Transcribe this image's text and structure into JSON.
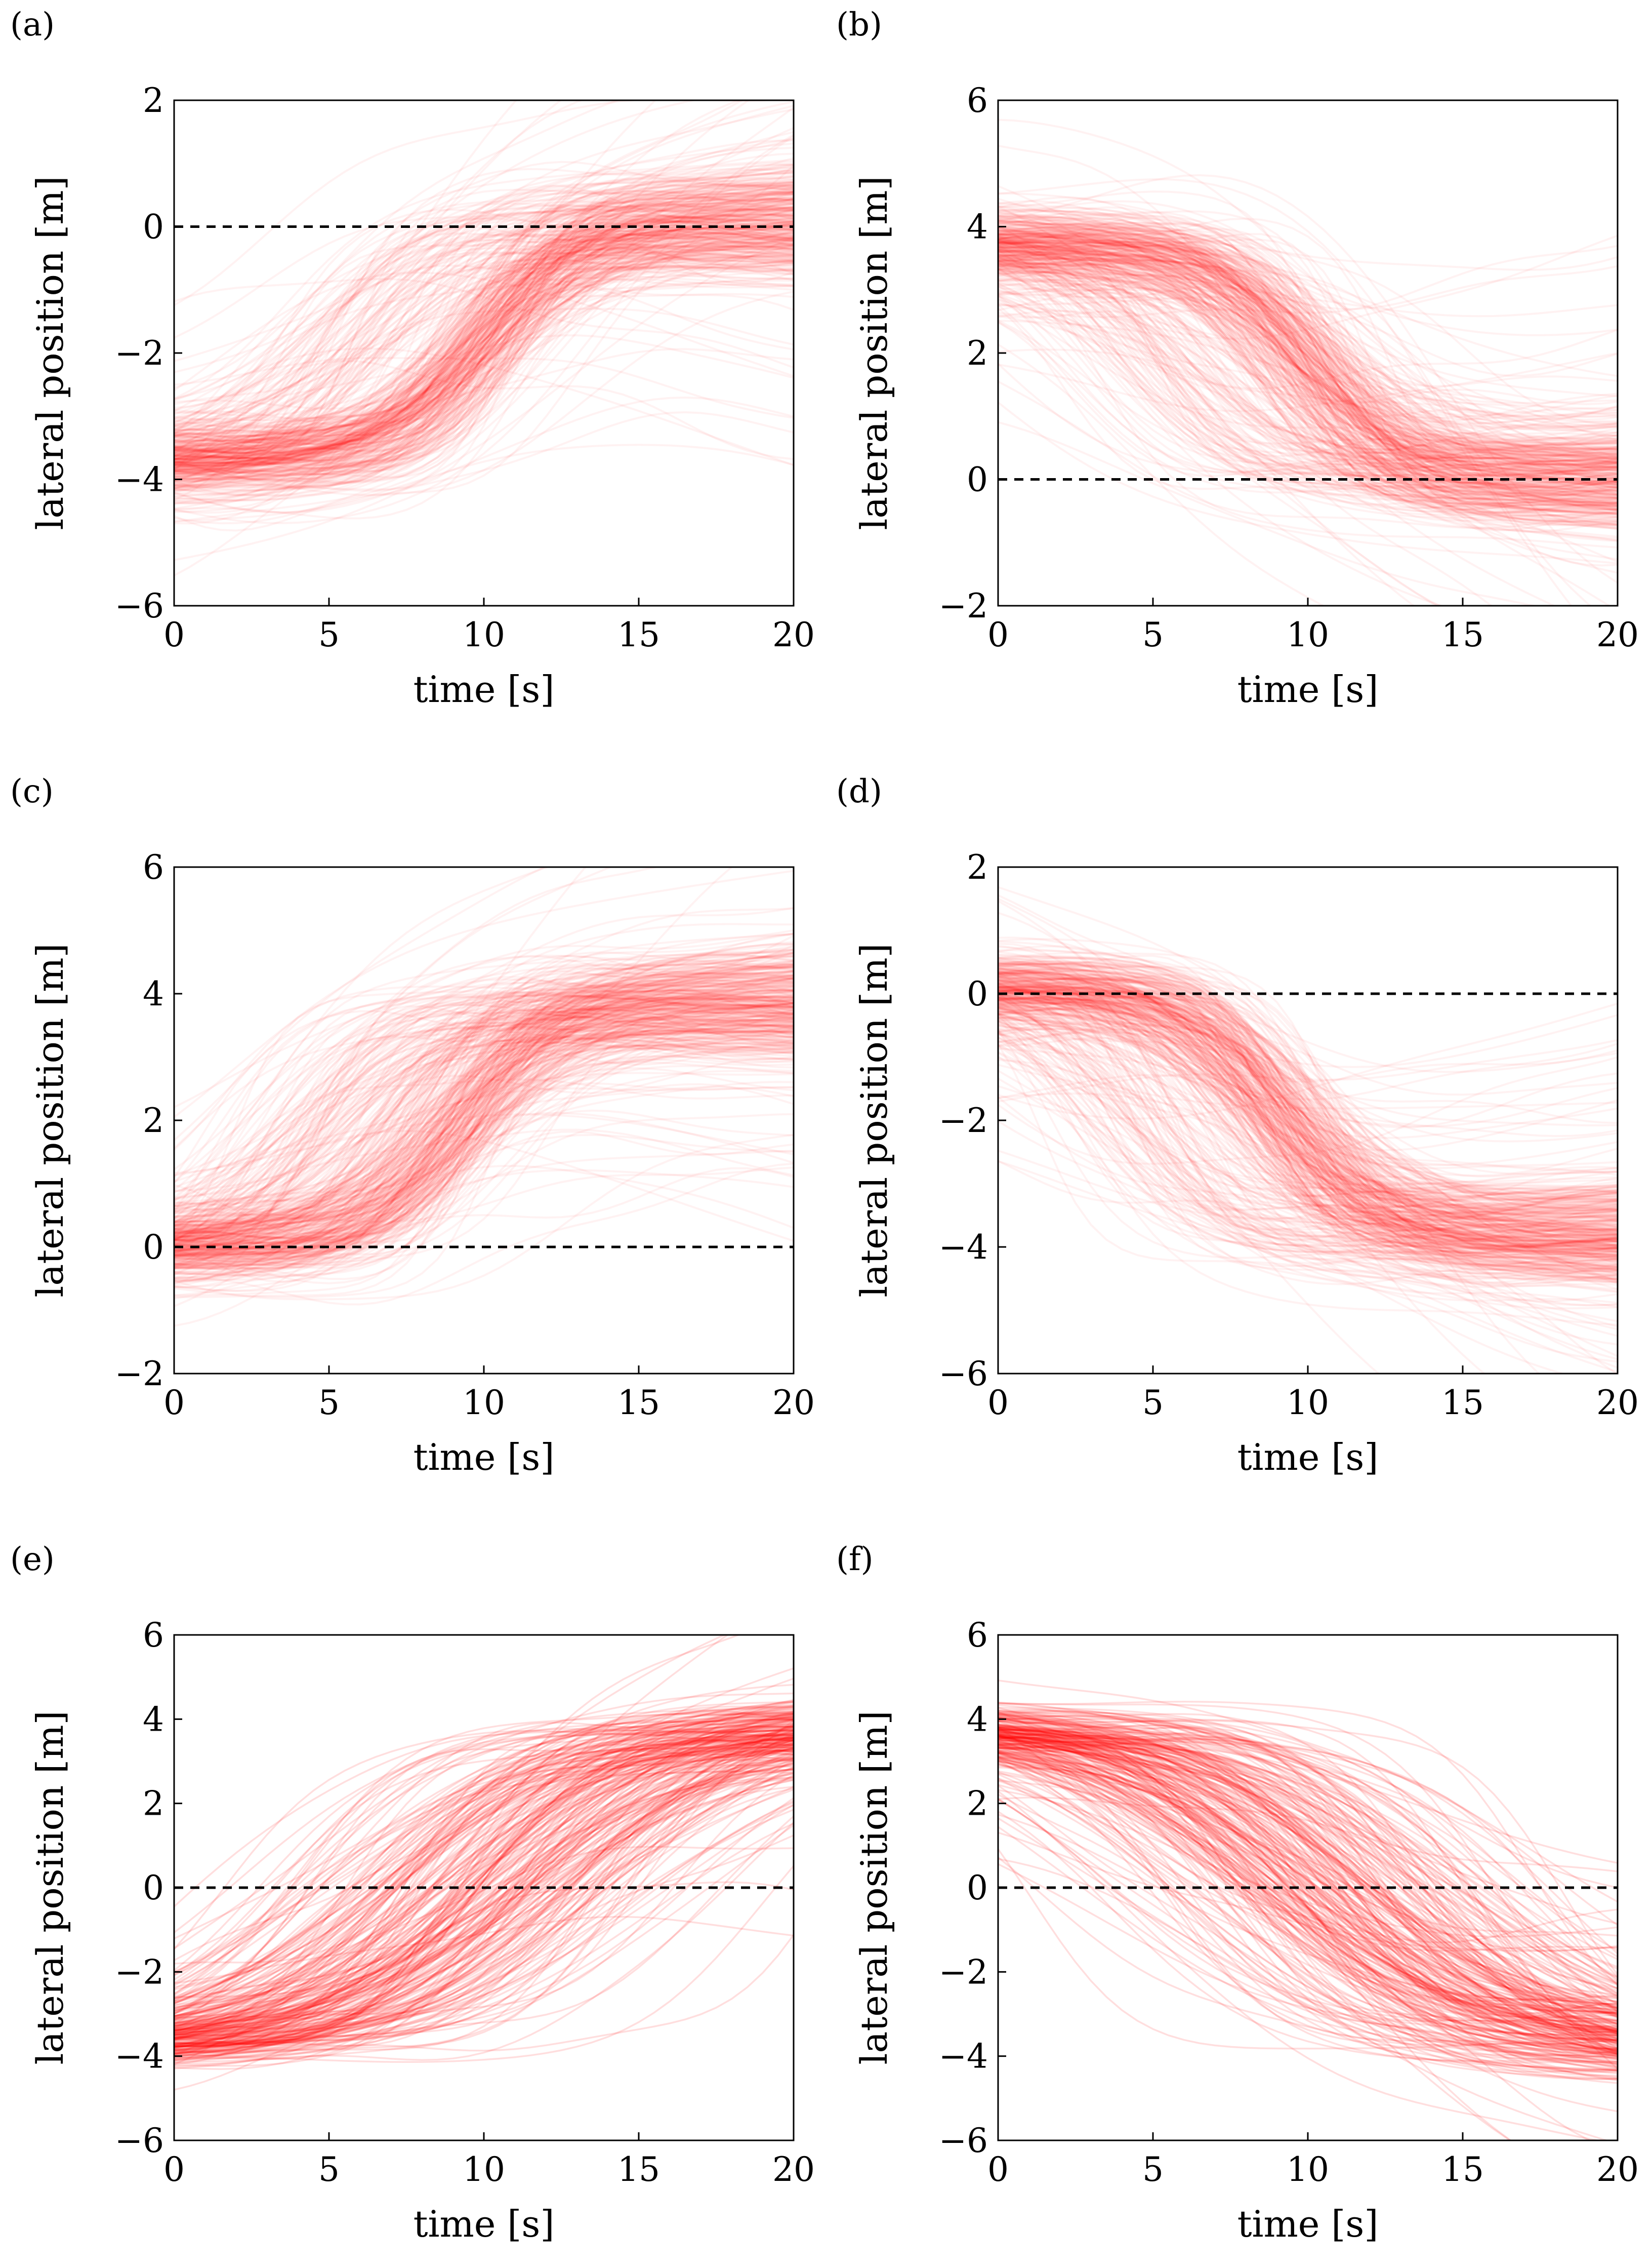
{
  "figure": {
    "colors": {
      "trace": "#ff0000",
      "reference": "#000000",
      "axes": "#000000",
      "background": "#ffffff"
    }
  },
  "chart_data": [
    {
      "panel": "(a)",
      "panel_letter": "a",
      "type": "line",
      "description": "lane change to the left, many trajectories",
      "xlabel": "time [s]",
      "ylabel": "lateral position [m]",
      "xlim": [
        0,
        20
      ],
      "ylim": [
        -6,
        2
      ],
      "xticks": [
        0,
        5,
        10,
        15,
        20
      ],
      "xtick_labels": [
        "0",
        "5",
        "10",
        "15",
        "20"
      ],
      "yticks": [
        -6,
        -4,
        -2,
        0,
        2
      ],
      "ytick_labels": [
        "−6",
        "−4",
        "−2",
        "0",
        "2"
      ],
      "reference_line": {
        "y": 0,
        "style": "dashed"
      },
      "series": [
        {
          "name": "trajectories",
          "start_y": -3.7,
          "end_y": 0.1,
          "transition_center_s": 10.0,
          "count": 400,
          "opacity": 0.05
        }
      ]
    },
    {
      "panel": "(b)",
      "panel_letter": "b",
      "type": "line",
      "description": "lane change to the right, many trajectories",
      "xlabel": "time [s]",
      "ylabel": "lateral position [m]",
      "xlim": [
        0,
        20
      ],
      "ylim": [
        -2,
        6
      ],
      "xticks": [
        0,
        5,
        10,
        15,
        20
      ],
      "xtick_labels": [
        "0",
        "5",
        "10",
        "15",
        "20"
      ],
      "yticks": [
        -2,
        0,
        2,
        4,
        6
      ],
      "ytick_labels": [
        "−2",
        "0",
        "2",
        "4",
        "6"
      ],
      "reference_line": {
        "y": 0,
        "style": "dashed"
      },
      "series": [
        {
          "name": "trajectories",
          "start_y": 3.7,
          "end_y": 0.0,
          "transition_center_s": 10.0,
          "count": 400,
          "opacity": 0.05
        }
      ]
    },
    {
      "panel": "(c)",
      "panel_letter": "c",
      "type": "line",
      "description": "lane change to the left, many trajectories",
      "xlabel": "time [s]",
      "ylabel": "lateral position [m]",
      "xlim": [
        0,
        20
      ],
      "ylim": [
        -2,
        6
      ],
      "xticks": [
        0,
        5,
        10,
        15,
        20
      ],
      "xtick_labels": [
        "0",
        "5",
        "10",
        "15",
        "20"
      ],
      "yticks": [
        -2,
        0,
        2,
        4,
        6
      ],
      "ytick_labels": [
        "−2",
        "0",
        "2",
        "4",
        "6"
      ],
      "reference_line": {
        "y": 0,
        "style": "dashed"
      },
      "series": [
        {
          "name": "trajectories",
          "start_y": 0.0,
          "end_y": 3.8,
          "transition_center_s": 9.0,
          "count": 400,
          "opacity": 0.05
        }
      ]
    },
    {
      "panel": "(d)",
      "panel_letter": "d",
      "type": "line",
      "description": "lane change to the right, many trajectories",
      "xlabel": "time [s]",
      "ylabel": "lateral position [m]",
      "xlim": [
        0,
        20
      ],
      "ylim": [
        -6,
        2
      ],
      "xticks": [
        0,
        5,
        10,
        15,
        20
      ],
      "xtick_labels": [
        "0",
        "5",
        "10",
        "15",
        "20"
      ],
      "yticks": [
        -6,
        -4,
        -2,
        0,
        2
      ],
      "ytick_labels": [
        "−6",
        "−4",
        "−2",
        "0",
        "2"
      ],
      "reference_line": {
        "y": 0,
        "style": "dashed"
      },
      "series": [
        {
          "name": "trajectories",
          "start_y": 0.1,
          "end_y": -3.8,
          "transition_center_s": 9.0,
          "count": 400,
          "opacity": 0.05
        }
      ]
    },
    {
      "panel": "(e)",
      "panel_letter": "e",
      "type": "line",
      "description": "lane change to the left, fewer trajectories with wide timing spread",
      "xlabel": "time [s]",
      "ylabel": "lateral position [m]",
      "xlim": [
        0,
        20
      ],
      "ylim": [
        -6,
        6
      ],
      "xticks": [
        0,
        5,
        10,
        15,
        20
      ],
      "xtick_labels": [
        "0",
        "5",
        "10",
        "15",
        "20"
      ],
      "yticks": [
        -6,
        -4,
        -2,
        0,
        2,
        4,
        6
      ],
      "ytick_labels": [
        "−6",
        "−4",
        "−2",
        "0",
        "2",
        "4",
        "6"
      ],
      "reference_line": {
        "y": 0,
        "style": "dashed"
      },
      "series": [
        {
          "name": "trajectories",
          "start_y": -3.8,
          "end_y": 3.8,
          "transition_center_s": 10.0,
          "count": 260,
          "opacity": 0.13
        }
      ]
    },
    {
      "panel": "(f)",
      "panel_letter": "f",
      "type": "line",
      "description": "lane change to the right, fewer trajectories with wide timing spread",
      "xlabel": "time [s]",
      "ylabel": "lateral position [m]",
      "xlim": [
        0,
        20
      ],
      "ylim": [
        -6,
        6
      ],
      "xticks": [
        0,
        5,
        10,
        15,
        20
      ],
      "xtick_labels": [
        "0",
        "5",
        "10",
        "15",
        "20"
      ],
      "yticks": [
        -6,
        -4,
        -2,
        0,
        2,
        4,
        6
      ],
      "ytick_labels": [
        "−6",
        "−4",
        "−2",
        "0",
        "2",
        "4",
        "6"
      ],
      "reference_line": {
        "y": 0,
        "style": "dashed"
      },
      "series": [
        {
          "name": "trajectories",
          "start_y": 3.8,
          "end_y": -3.8,
          "transition_center_s": 11.0,
          "count": 260,
          "opacity": 0.13
        }
      ]
    }
  ]
}
